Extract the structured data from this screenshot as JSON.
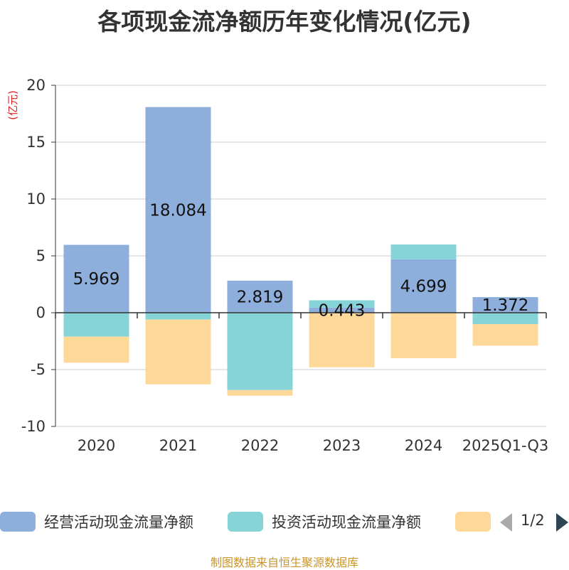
{
  "chart_data": {
    "type": "bar",
    "stacked": true,
    "title": "各项现金流净额历年变化情况(亿元)",
    "ylabel": "(亿元)",
    "xlabel": "",
    "ylim": [
      -10,
      20
    ],
    "yticks": [
      20,
      15,
      10,
      5,
      0,
      -5,
      -10
    ],
    "categories": [
      "2020",
      "2021",
      "2022",
      "2023",
      "2024",
      "2025Q1-Q3"
    ],
    "series": [
      {
        "name": "经营活动现金流量净额",
        "color": "#8eaedb",
        "values": [
          5.969,
          18.084,
          2.819,
          0.443,
          4.699,
          1.372
        ],
        "data_labels": [
          "5.969",
          "18.084",
          "2.819",
          "0.443",
          "4.699",
          "1.372"
        ]
      },
      {
        "name": "投资活动现金流量净额",
        "color": "#86d4d8",
        "values": [
          -2.1,
          -0.6,
          -6.8,
          0.65,
          1.3,
          -1.0
        ]
      },
      {
        "name": "",
        "color": "#fdd898",
        "values": [
          -2.3,
          -5.7,
          -0.5,
          -4.8,
          -4.0,
          -1.9
        ]
      }
    ]
  },
  "legend": {
    "page": "1/2"
  },
  "source": "制图数据来自恒生聚源数据库"
}
